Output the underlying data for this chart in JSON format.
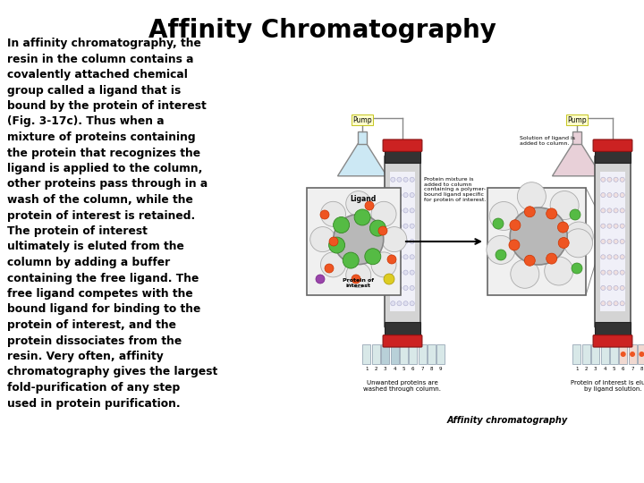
{
  "title": "Affinity Chromatography",
  "title_fontsize": 20,
  "title_font": "Comic Sans MS",
  "body_lines": [
    "In affinity chromatography, the",
    "resin in the column contains a",
    "covalently attached chemical",
    "group called a ligand that is",
    "bound by the protein of interest",
    "(Fig. 3-17c). Thus when a",
    "mixture of proteins containing",
    "the protein that recognizes the",
    "ligand is applied to the column,",
    "other proteins pass through in a",
    "wash of the column, while the",
    "protein of interest is retained.",
    "The protein of interest",
    "ultimately is eluted from the",
    "column by adding a buffer",
    "containing the free ligand. The",
    "free ligand competes with the",
    "bound ligand for binding to the",
    "protein of interest, and the",
    "protein dissociates from the",
    "resin. Very often, affinity",
    "chromatography gives the largest",
    "fold-purification of any step",
    "used in protein purification."
  ],
  "body_fontsize": 8.8,
  "body_font": "Courier New",
  "background_color": "#ffffff",
  "text_color": "#000000",
  "diagram_bg": "#ffffff"
}
